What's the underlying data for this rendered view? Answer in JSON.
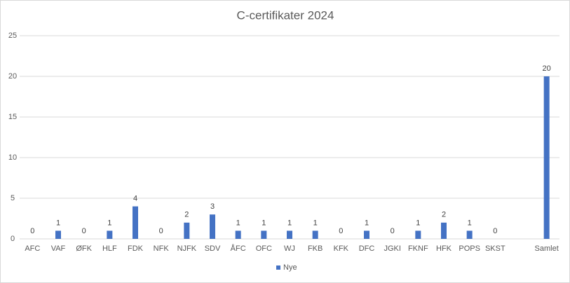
{
  "chart_data": {
    "type": "bar",
    "title": "C-certifikater 2024",
    "categories": [
      "AFC",
      "VAF",
      "ØFK",
      "HLF",
      "FDK",
      "NFK",
      "NJFK",
      "SDV",
      "ÅFC",
      "OFC",
      "WJ",
      "FKB",
      "KFK",
      "DFC",
      "JGKI",
      "FKNF",
      "HFK",
      "POPS",
      "SKST",
      null,
      "Samlet"
    ],
    "series": [
      {
        "name": "Nye",
        "color": "#4472c4",
        "values": [
          0,
          1,
          0,
          1,
          4,
          0,
          2,
          3,
          1,
          1,
          1,
          1,
          0,
          1,
          0,
          1,
          2,
          1,
          0,
          null,
          20
        ]
      }
    ],
    "ylim": [
      0,
      25
    ],
    "yticks": [
      0,
      5,
      10,
      15,
      20,
      25
    ],
    "grid": true,
    "legend": "bottom"
  }
}
